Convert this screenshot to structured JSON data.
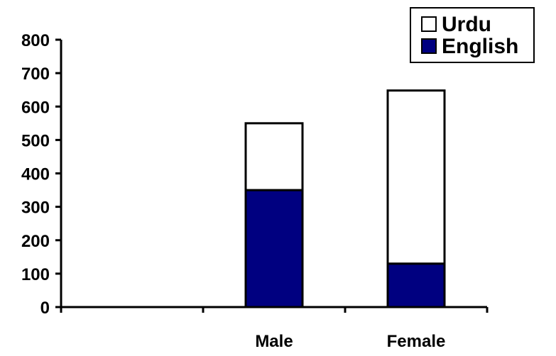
{
  "chart_data": {
    "type": "bar",
    "stacked": true,
    "categories": [
      "",
      "Male",
      "Female"
    ],
    "series": [
      {
        "name": "English",
        "values": [
          0,
          350,
          130
        ],
        "color": "#000080"
      },
      {
        "name": "Urdu",
        "values": [
          0,
          200,
          518
        ],
        "color": "#ffffff"
      }
    ],
    "legend_order": [
      "Urdu",
      "English"
    ],
    "legend_position": "top-right",
    "ylim": [
      0,
      800
    ],
    "yticks": [
      "0",
      "100",
      "200",
      "300",
      "400",
      "500",
      "600",
      "700",
      "800"
    ],
    "grid": false,
    "title": "",
    "xlabel": "",
    "ylabel": ""
  }
}
